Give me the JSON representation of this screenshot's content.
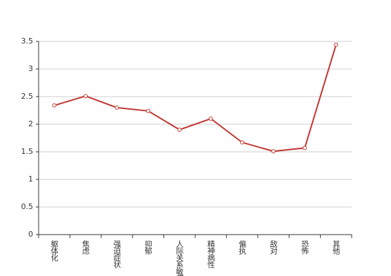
{
  "chart_data": {
    "type": "line",
    "categories": [
      "躯体化",
      "焦虑",
      "强迫症状",
      "抑郁",
      "人际关系敏感",
      "精神病性",
      "偏执",
      "敌对",
      "恐怖",
      "其他"
    ],
    "values": [
      2.34,
      2.51,
      2.3,
      2.24,
      1.9,
      2.1,
      1.67,
      1.51,
      1.57,
      3.44
    ],
    "color": "#c23531",
    "ylim": [
      0,
      3.5
    ],
    "yticks": [
      0,
      0.5,
      1,
      1.5,
      2,
      2.5,
      3,
      3.5
    ],
    "grid": true
  }
}
